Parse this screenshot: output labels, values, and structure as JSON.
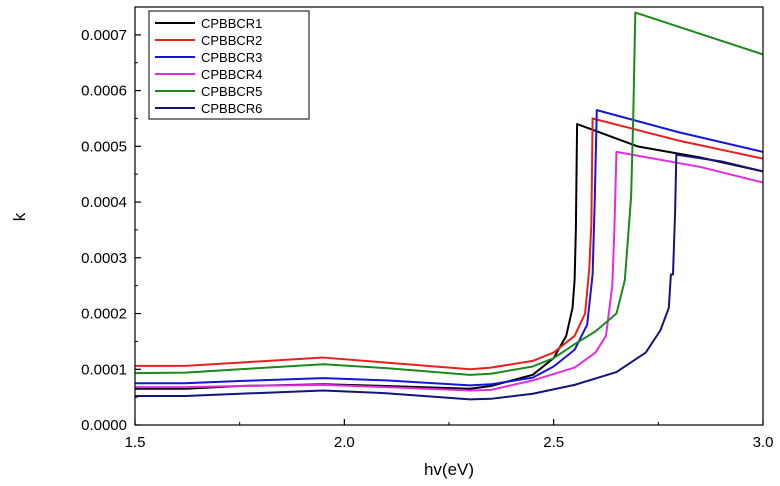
{
  "chart_data": {
    "type": "line",
    "title": "",
    "xlabel": "hv(eV)",
    "ylabel": "k",
    "xlim": [
      1.5,
      3.0
    ],
    "ylim": [
      0.0,
      0.00075
    ],
    "x_ticks": [
      1.5,
      2.0,
      2.5,
      3.0
    ],
    "x_tick_labels": [
      "1.5",
      "2.0",
      "2.5",
      "3.0"
    ],
    "y_ticks": [
      0.0,
      0.0001,
      0.0002,
      0.0003,
      0.0004,
      0.0005,
      0.0006,
      0.0007
    ],
    "y_tick_labels": [
      "0.0000",
      "0.0001",
      "0.0002",
      "0.0003",
      "0.0004",
      "0.0005",
      "0.0006",
      "0.0007"
    ],
    "grid": false,
    "legend_position": "top-left",
    "series": [
      {
        "name": "CPBBCR1",
        "color": "#000000",
        "points": [
          [
            1.5,
            6.5e-05
          ],
          [
            1.62,
            6.5e-05
          ],
          [
            1.75,
            7e-05
          ],
          [
            1.95,
            7.3e-05
          ],
          [
            2.1,
            7e-05
          ],
          [
            2.3,
            6.5e-05
          ],
          [
            2.35,
            7e-05
          ],
          [
            2.45,
            9e-05
          ],
          [
            2.5,
            0.00012
          ],
          [
            2.53,
            0.00016
          ],
          [
            2.545,
            0.00021
          ],
          [
            2.55,
            0.00026
          ],
          [
            2.553,
            0.00035
          ],
          [
            2.556,
            0.00054
          ],
          [
            2.7,
            0.0005
          ],
          [
            2.85,
            0.00048
          ],
          [
            3.0,
            0.000455
          ]
        ]
      },
      {
        "name": "CPBBCR2",
        "color": "#e8211c",
        "points": [
          [
            1.5,
            0.000106
          ],
          [
            1.62,
            0.000106
          ],
          [
            1.75,
            0.000112
          ],
          [
            1.95,
            0.000121
          ],
          [
            2.1,
            0.000112
          ],
          [
            2.3,
            0.0001
          ],
          [
            2.35,
            0.000103
          ],
          [
            2.45,
            0.000115
          ],
          [
            2.5,
            0.00013
          ],
          [
            2.55,
            0.00016
          ],
          [
            2.575,
            0.0002
          ],
          [
            2.585,
            0.00028
          ],
          [
            2.59,
            0.00036
          ],
          [
            2.593,
            0.00055
          ],
          [
            2.8,
            0.00051
          ],
          [
            3.0,
            0.000478
          ]
        ]
      },
      {
        "name": "CPBBCR3",
        "color": "#1515d6",
        "points": [
          [
            1.5,
            7.5e-05
          ],
          [
            1.62,
            7.5e-05
          ],
          [
            1.75,
            7.9e-05
          ],
          [
            1.95,
            8.4e-05
          ],
          [
            2.1,
            8e-05
          ],
          [
            2.3,
            7.1e-05
          ],
          [
            2.35,
            7.3e-05
          ],
          [
            2.45,
            8.5e-05
          ],
          [
            2.5,
            0.000105
          ],
          [
            2.55,
            0.000135
          ],
          [
            2.58,
            0.00018
          ],
          [
            2.593,
            0.00027
          ],
          [
            2.598,
            0.0004
          ],
          [
            2.603,
            0.000565
          ],
          [
            2.8,
            0.000525
          ],
          [
            3.0,
            0.00049
          ]
        ]
      },
      {
        "name": "CPBBCR4",
        "color": "#e32be3",
        "points": [
          [
            1.5,
            6.8e-05
          ],
          [
            1.62,
            6.8e-05
          ],
          [
            1.75,
            7e-05
          ],
          [
            1.95,
            7.2e-05
          ],
          [
            2.1,
            6.8e-05
          ],
          [
            2.3,
            6.2e-05
          ],
          [
            2.35,
            6.3e-05
          ],
          [
            2.45,
            8e-05
          ],
          [
            2.55,
            0.000103
          ],
          [
            2.6,
            0.00013
          ],
          [
            2.625,
            0.00016
          ],
          [
            2.64,
            0.00025
          ],
          [
            2.645,
            0.00035
          ],
          [
            2.65,
            0.00049
          ],
          [
            2.85,
            0.000463
          ],
          [
            3.0,
            0.000435
          ]
        ]
      },
      {
        "name": "CPBBCR5",
        "color": "#1a8a1a",
        "points": [
          [
            1.5,
            9.3e-05
          ],
          [
            1.62,
            9.4e-05
          ],
          [
            1.75,
            0.0001
          ],
          [
            1.95,
            0.000109
          ],
          [
            2.1,
            0.000102
          ],
          [
            2.3,
            9e-05
          ],
          [
            2.35,
            9.2e-05
          ],
          [
            2.45,
            0.000105
          ],
          [
            2.5,
            0.00012
          ],
          [
            2.55,
            0.000145
          ],
          [
            2.6,
            0.000168
          ],
          [
            2.65,
            0.0002
          ],
          [
            2.67,
            0.00026
          ],
          [
            2.685,
            0.00041
          ],
          [
            2.69,
            0.00055
          ],
          [
            2.695,
            0.00074
          ],
          [
            3.0,
            0.000665
          ]
        ]
      },
      {
        "name": "CPBBCR6",
        "color": "#14147a",
        "points": [
          [
            1.5,
            5.2e-05
          ],
          [
            1.62,
            5.2e-05
          ],
          [
            1.75,
            5.6e-05
          ],
          [
            1.95,
            6.2e-05
          ],
          [
            2.1,
            5.7e-05
          ],
          [
            2.3,
            4.6e-05
          ],
          [
            2.35,
            4.7e-05
          ],
          [
            2.45,
            5.6e-05
          ],
          [
            2.55,
            7.2e-05
          ],
          [
            2.65,
            9.5e-05
          ],
          [
            2.72,
            0.00013
          ],
          [
            2.755,
            0.00017
          ],
          [
            2.775,
            0.00021
          ],
          [
            2.78,
            0.00027
          ],
          [
            2.785,
            0.00027
          ],
          [
            2.79,
            0.00038
          ],
          [
            2.793,
            0.000485
          ],
          [
            2.9,
            0.000473
          ],
          [
            3.0,
            0.000455
          ]
        ]
      }
    ]
  }
}
